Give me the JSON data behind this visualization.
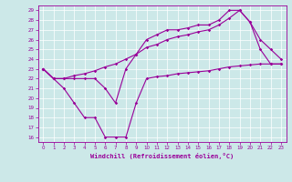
{
  "xlabel": "Windchill (Refroidissement éolien,°C)",
  "bg_color": "#cce8e8",
  "line_color": "#990099",
  "grid_color": "#aadddd",
  "xlim": [
    -0.5,
    23.5
  ],
  "ylim": [
    15.5,
    29.5
  ],
  "yticks": [
    16,
    17,
    18,
    19,
    20,
    21,
    22,
    23,
    24,
    25,
    26,
    27,
    28,
    29
  ],
  "xticks": [
    0,
    1,
    2,
    3,
    4,
    5,
    6,
    7,
    8,
    9,
    10,
    11,
    12,
    13,
    14,
    15,
    16,
    17,
    18,
    19,
    20,
    21,
    22,
    23
  ],
  "line1_x": [
    0,
    1,
    2,
    3,
    4,
    5,
    6,
    7,
    8,
    9,
    10,
    11,
    12,
    13,
    14,
    15,
    16,
    17,
    18,
    19,
    20,
    21,
    22,
    23
  ],
  "line1_y": [
    23,
    22,
    22,
    22,
    22,
    22,
    21,
    19.5,
    23,
    24.5,
    26,
    26.5,
    27,
    27,
    27.2,
    27.5,
    27.5,
    28,
    29,
    29,
    27.8,
    25,
    23.5,
    23.5
  ],
  "line2_x": [
    0,
    1,
    2,
    3,
    4,
    5,
    6,
    7,
    8,
    9,
    10,
    11,
    12,
    13,
    14,
    15,
    16,
    17,
    18,
    19,
    20,
    21,
    22,
    23
  ],
  "line2_y": [
    23,
    22,
    22,
    22.3,
    22.5,
    22.8,
    23.2,
    23.5,
    24,
    24.5,
    25.2,
    25.5,
    26,
    26.3,
    26.5,
    26.8,
    27,
    27.5,
    28.2,
    29,
    27.8,
    26,
    25,
    24
  ],
  "line3_x": [
    0,
    1,
    2,
    3,
    4,
    5,
    6,
    7,
    8,
    9,
    10,
    11,
    12,
    13,
    14,
    15,
    16,
    17,
    18,
    19,
    20,
    21,
    22,
    23
  ],
  "line3_y": [
    23,
    22,
    21,
    19.5,
    18,
    18,
    16,
    16,
    16,
    19.5,
    22,
    22.2,
    22.3,
    22.5,
    22.6,
    22.7,
    22.8,
    23,
    23.2,
    23.3,
    23.4,
    23.5,
    23.5,
    23.5
  ]
}
